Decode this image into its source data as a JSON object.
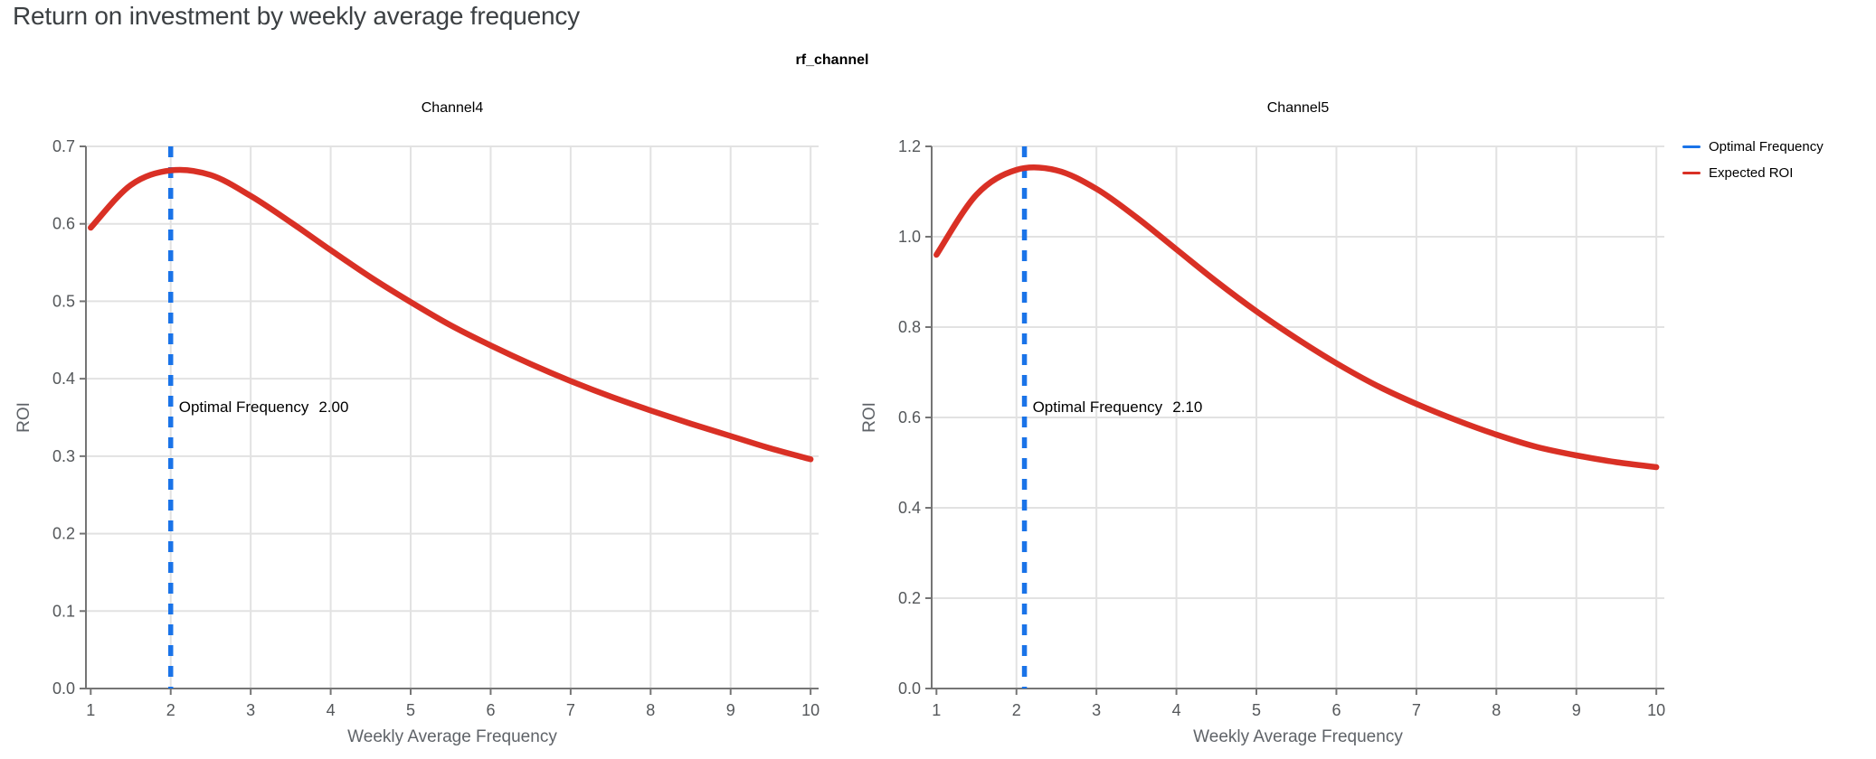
{
  "page": {
    "title": "Return on investment by weekly average frequency"
  },
  "legend": {
    "items": [
      {
        "label": "Optimal Frequency",
        "color": "#1a73e8"
      },
      {
        "label": "Expected ROI",
        "color": "#d93025"
      }
    ],
    "position": "right"
  },
  "style": {
    "roi_color": "#d93025",
    "optimal_color": "#1a73e8",
    "grid_color": "#e2e2e2",
    "axis_color": "#757575",
    "tick_label_color": "#54575a",
    "axis_title_color": "#5f6368",
    "page_title_color": "#3c4043"
  },
  "chart_data": {
    "type": "line",
    "title": "rf_channel",
    "xlabel": "Weekly Average Frequency",
    "ylabel": "ROI",
    "grid": true,
    "legend_position": "right",
    "legend_entries": [
      "Optimal Frequency",
      "Expected ROI"
    ],
    "xlim": [
      0.94,
      10.1
    ],
    "x": [
      1,
      1.5,
      2,
      2.5,
      3,
      3.5,
      4,
      4.5,
      5,
      5.5,
      6,
      6.5,
      7,
      7.5,
      8,
      8.5,
      9,
      9.5,
      10
    ],
    "xticks": [
      1,
      2,
      3,
      4,
      5,
      6,
      7,
      8,
      9,
      10
    ],
    "facets": [
      {
        "title": "Channel4",
        "ylim": [
          0,
          0.7
        ],
        "yticks": [
          "0.0",
          "0.1",
          "0.2",
          "0.3",
          "0.4",
          "0.5",
          "0.6",
          "0.7"
        ],
        "optimal_frequency": 2.0,
        "annotation": {
          "label": "Optimal Frequency",
          "value": "2.00"
        },
        "expected_roi": [
          0.595,
          0.65,
          0.669,
          0.663,
          0.636,
          0.602,
          0.566,
          0.531,
          0.499,
          0.469,
          0.443,
          0.419,
          0.397,
          0.377,
          0.359,
          0.342,
          0.326,
          0.31,
          0.296
        ]
      },
      {
        "title": "Channel5",
        "ylim": [
          0,
          1.2
        ],
        "yticks": [
          "0.0",
          "0.2",
          "0.4",
          "0.6",
          "0.8",
          "1.0",
          "1.2"
        ],
        "optimal_frequency": 2.1,
        "annotation": {
          "label": "Optimal Frequency",
          "value": "2.10"
        },
        "expected_roi": [
          0.96,
          1.093,
          1.148,
          1.147,
          1.106,
          1.043,
          0.972,
          0.901,
          0.835,
          0.775,
          0.72,
          0.671,
          0.63,
          0.594,
          0.562,
          0.535,
          0.516,
          0.501,
          0.49
        ]
      }
    ]
  }
}
